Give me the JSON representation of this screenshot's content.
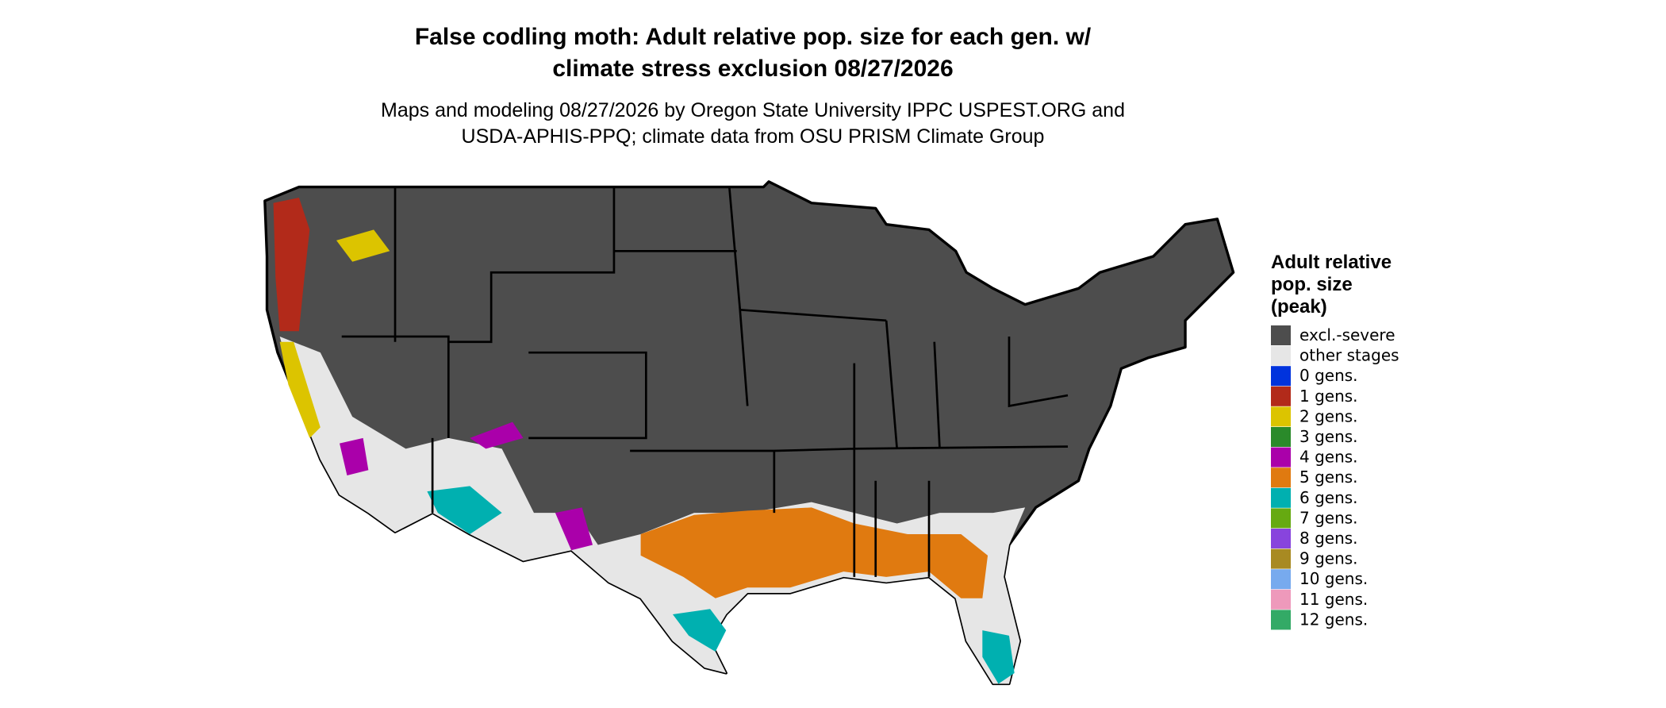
{
  "header": {
    "title_lines": [
      "False codling moth: Adult relative pop. size for each gen. w/",
      "climate stress exclusion 08/27/2026"
    ],
    "subtitle_lines": [
      "Maps and modeling 08/27/2026 by Oregon State University IPPC USPEST.ORG and",
      "USDA-APHIS-PPQ; climate data from OSU PRISM Climate Group"
    ]
  },
  "legend": {
    "title_lines": [
      "Adult relative",
      "pop. size",
      "(peak)"
    ],
    "items": [
      {
        "label": "excl.-severe",
        "color": "#4d4d4d"
      },
      {
        "label": "other stages",
        "color": "#e6e6e6"
      },
      {
        "label": "0 gens.",
        "color": "#0033dd"
      },
      {
        "label": "1 gens.",
        "color": "#b22a1a"
      },
      {
        "label": "2 gens.",
        "color": "#dcc400"
      },
      {
        "label": "3 gens.",
        "color": "#2a8a2a"
      },
      {
        "label": "4 gens.",
        "color": "#aa00aa"
      },
      {
        "label": "5 gens.",
        "color": "#e07a10"
      },
      {
        "label": "6 gens.",
        "color": "#00b0b0"
      },
      {
        "label": "7 gens.",
        "color": "#66aa11"
      },
      {
        "label": "8 gens.",
        "color": "#8844dd"
      },
      {
        "label": "9 gens.",
        "color": "#a88a22"
      },
      {
        "label": "10 gens.",
        "color": "#77aaee"
      },
      {
        "label": "11 gens.",
        "color": "#ee99bb"
      },
      {
        "label": "12 gens.",
        "color": "#33aa66"
      }
    ]
  }
}
